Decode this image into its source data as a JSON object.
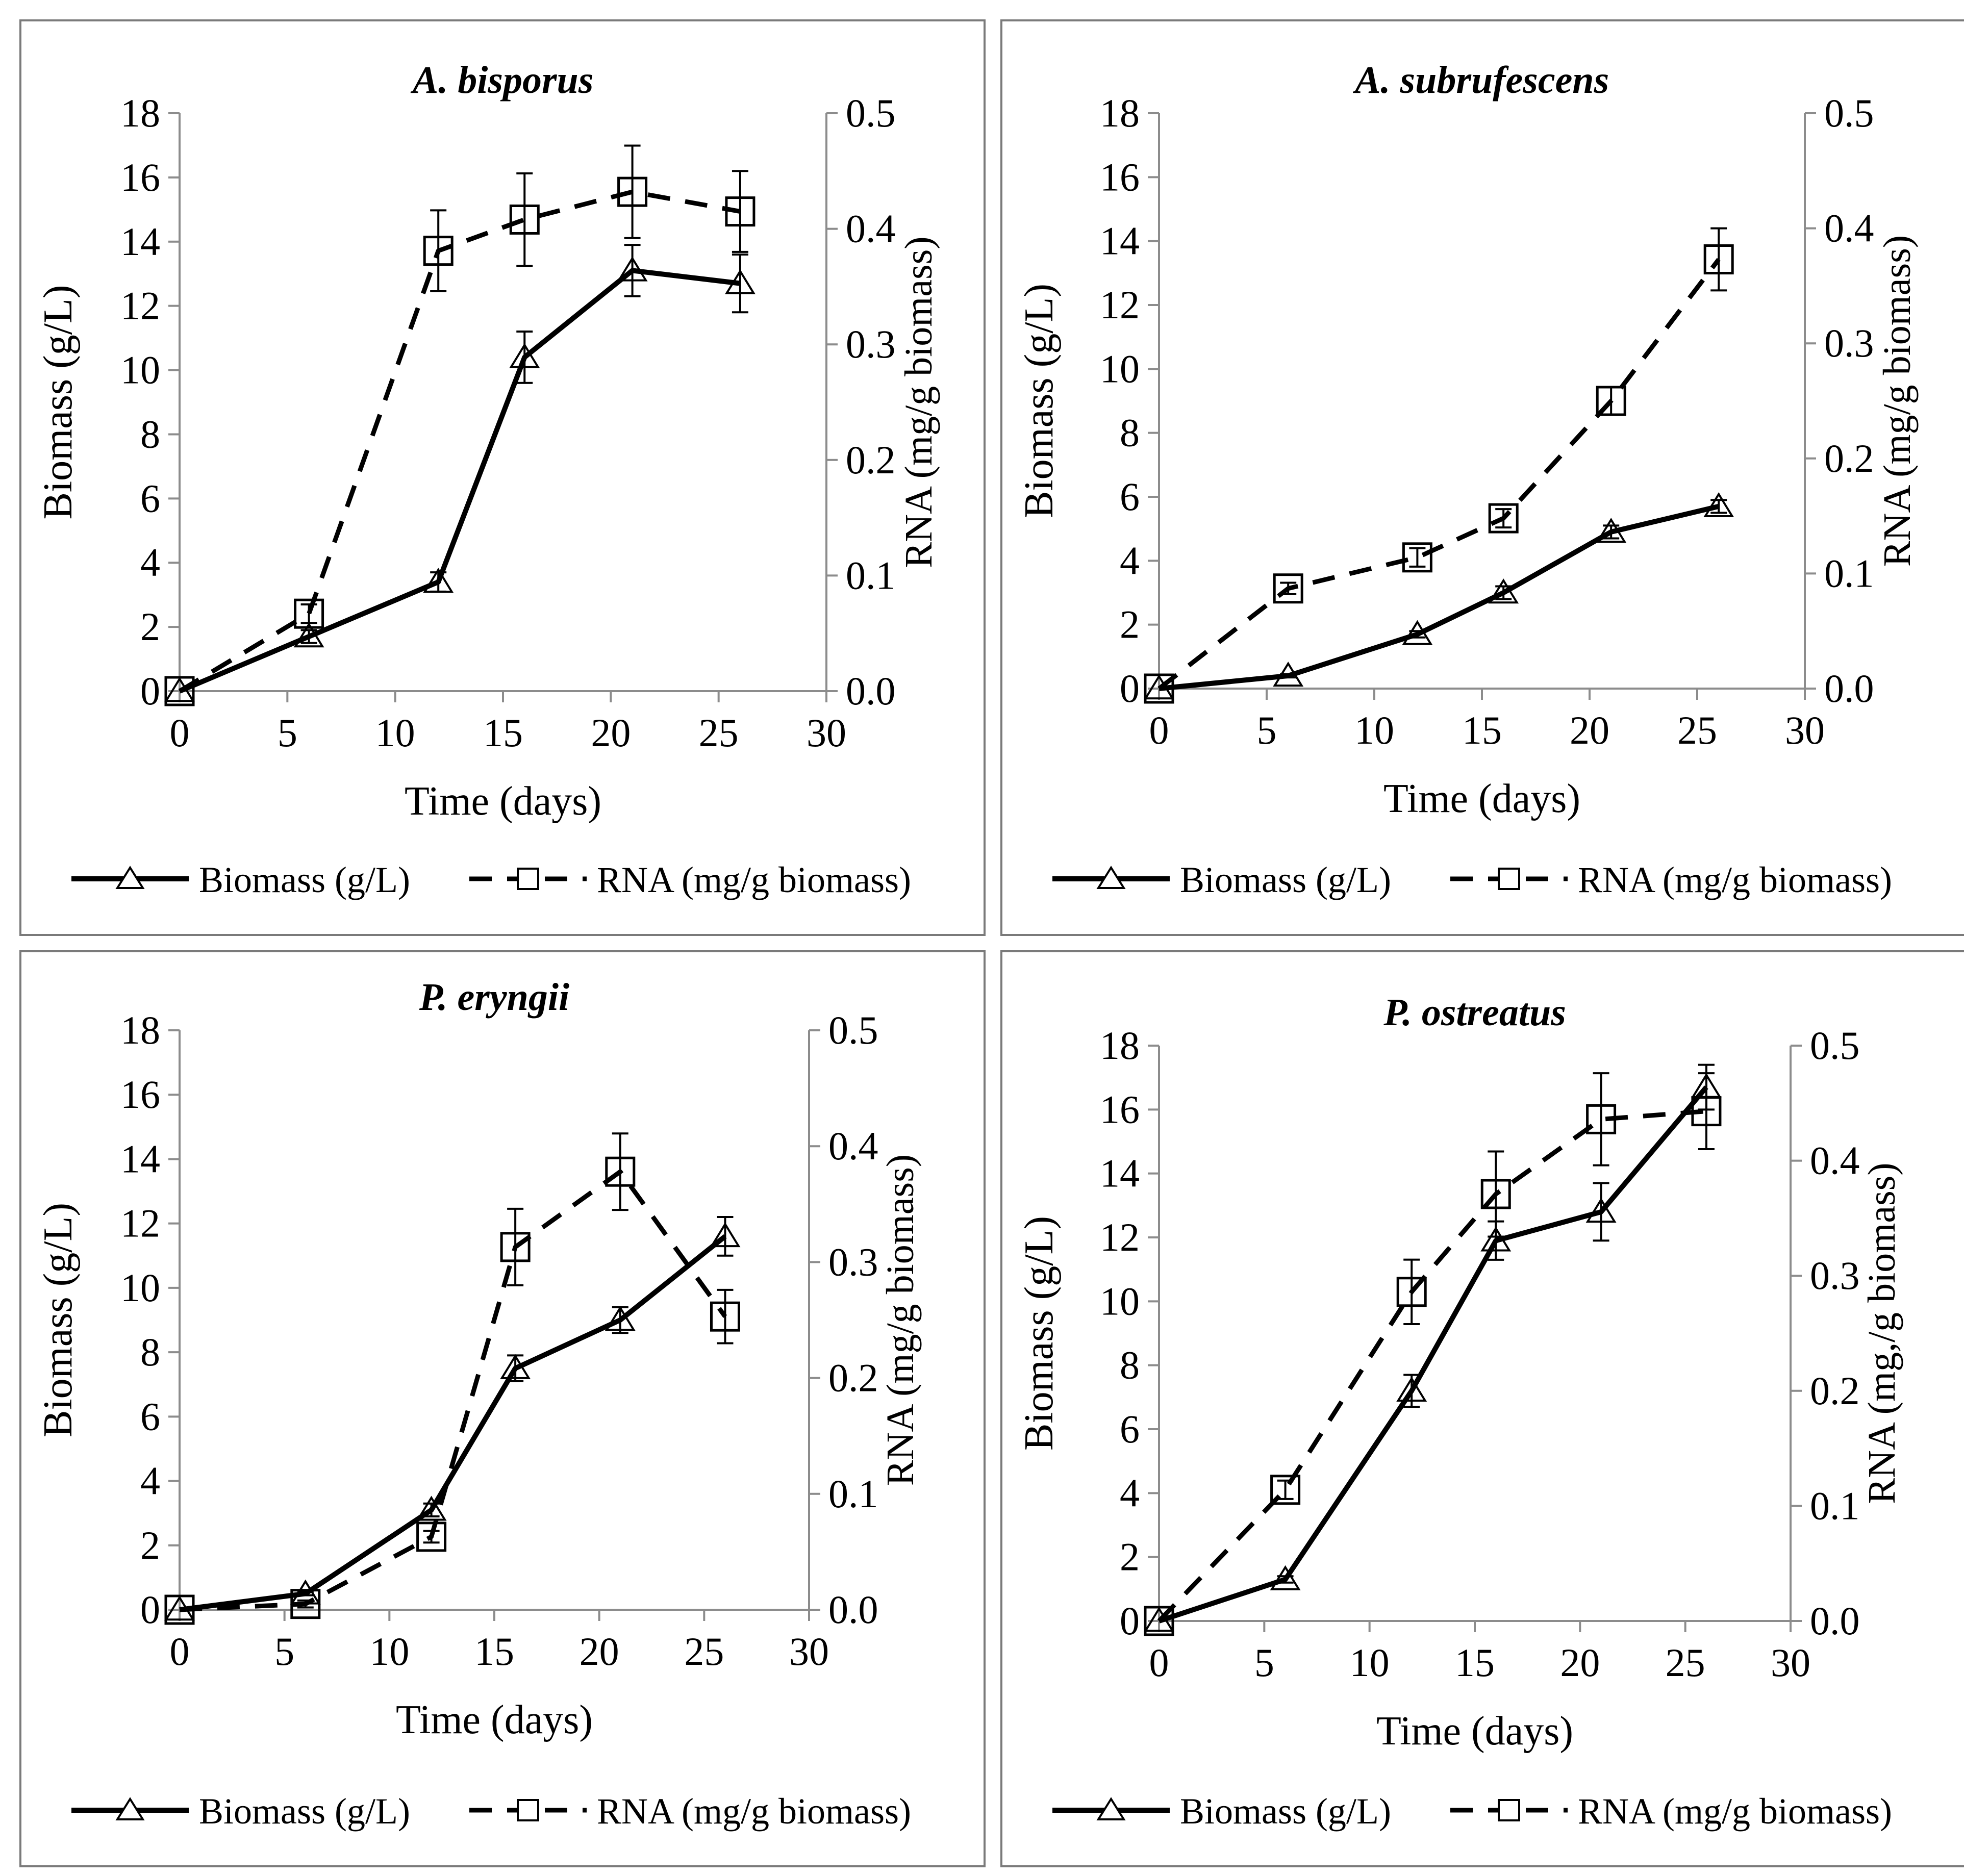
{
  "chart_data": [
    {
      "type": "line",
      "title": "A. bisporus",
      "xlabel": "Time (days)",
      "ylabel": "Biomass (g/L)",
      "y2label": "RNA (mg/g biomass)",
      "xlim": [
        0,
        30
      ],
      "ylim": [
        0,
        18
      ],
      "y2lim": [
        0,
        0.5
      ],
      "x_ticks": [
        "0",
        "5",
        "10",
        "15",
        "20",
        "25",
        "30"
      ],
      "y_ticks": [
        "0",
        "2",
        "4",
        "6",
        "8",
        "10",
        "12",
        "14",
        "16",
        "18"
      ],
      "y2_ticks": [
        "0.0",
        "0.1",
        "0.2",
        "0.3",
        "0.4",
        "0.5"
      ],
      "x": [
        0,
        6,
        12,
        16,
        21,
        26
      ],
      "series": [
        {
          "name": "Biomass (g/L)",
          "axis": "left",
          "marker": "triangle",
          "line": "solid",
          "values": [
            0,
            1.7,
            3.4,
            10.4,
            13.1,
            12.7
          ],
          "errors": [
            0,
            0.2,
            0.3,
            0.8,
            0.8,
            0.9
          ]
        },
        {
          "name": "RNA (mg/g biomass)",
          "axis": "right",
          "marker": "square",
          "line": "dashed",
          "values": [
            0,
            0.067,
            0.381,
            0.408,
            0.432,
            0.415
          ],
          "errors": [
            0,
            0.008,
            0.035,
            0.04,
            0.04,
            0.035
          ]
        }
      ],
      "legend": {
        "position": "bottom",
        "items": [
          "Biomass (g/L)",
          "RNA (mg/g biomass)"
        ]
      }
    },
    {
      "type": "line",
      "title": "A. subrufescens",
      "xlabel": "Time (days)",
      "ylabel": "Biomass (g/L)",
      "y2label": "RNA (mg/g biomass)",
      "xlim": [
        0,
        30
      ],
      "ylim": [
        0,
        18
      ],
      "y2lim": [
        0,
        0.5
      ],
      "x_ticks": [
        "0",
        "5",
        "10",
        "15",
        "20",
        "25",
        "30"
      ],
      "y_ticks": [
        "0",
        "2",
        "4",
        "6",
        "8",
        "10",
        "12",
        "14",
        "16",
        "18"
      ],
      "y2_ticks": [
        "0.0",
        "0.1",
        "0.2",
        "0.3",
        "0.4",
        "0.5"
      ],
      "x": [
        0,
        6,
        12,
        16,
        21,
        26
      ],
      "series": [
        {
          "name": "Biomass (g/L)",
          "axis": "left",
          "marker": "triangle",
          "line": "solid",
          "values": [
            0,
            0.4,
            1.7,
            3.0,
            4.9,
            5.7
          ],
          "errors": [
            0,
            0.05,
            0.1,
            0.2,
            0.2,
            0.2
          ]
        },
        {
          "name": "RNA (mg/g biomass)",
          "axis": "right",
          "marker": "square",
          "line": "dashed",
          "values": [
            0,
            0.087,
            0.114,
            0.148,
            0.25,
            0.373
          ],
          "errors": [
            0,
            0.005,
            0.008,
            0.008,
            0.012,
            0.027
          ]
        }
      ],
      "legend": {
        "position": "bottom",
        "items": [
          "Biomass (g/L)",
          "RNA (mg/g biomass)"
        ]
      }
    },
    {
      "type": "line",
      "title": "P. eryngii",
      "xlabel": "Time (days)",
      "ylabel": "Biomass (g/L)",
      "y2label": "RNA (mg/g biomass)",
      "xlim": [
        0,
        30
      ],
      "ylim": [
        0,
        18
      ],
      "y2lim": [
        0,
        0.5
      ],
      "x_ticks": [
        "0",
        "5",
        "10",
        "15",
        "20",
        "25",
        "30"
      ],
      "y_ticks": [
        "0",
        "2",
        "4",
        "6",
        "8",
        "10",
        "12",
        "14",
        "16",
        "18"
      ],
      "y2_ticks": [
        "0.0",
        "0.1",
        "0.2",
        "0.3",
        "0.4",
        "0.5"
      ],
      "x": [
        0,
        6,
        12,
        16,
        21,
        26
      ],
      "series": [
        {
          "name": "Biomass (g/L)",
          "axis": "left",
          "marker": "triangle",
          "line": "solid",
          "values": [
            0,
            0.5,
            3.1,
            7.5,
            9.0,
            11.6
          ],
          "errors": [
            0,
            0.05,
            0.2,
            0.4,
            0.4,
            0.6
          ]
        },
        {
          "name": "RNA (mg/g biomass)",
          "axis": "right",
          "marker": "square",
          "line": "dashed",
          "values": [
            0,
            0.005,
            0.063,
            0.313,
            0.378,
            0.253
          ],
          "errors": [
            0,
            0.003,
            0.005,
            0.033,
            0.033,
            0.023
          ]
        }
      ],
      "legend": {
        "position": "bottom",
        "items": [
          "Biomass (g/L)",
          "RNA (mg/g biomass)"
        ]
      }
    },
    {
      "type": "line",
      "title": "P. ostreatus",
      "xlabel": "Time (days)",
      "ylabel": "Biomass (g/L)",
      "y2label": "RNA (mg,/g biomass)",
      "xlim": [
        0,
        30
      ],
      "ylim": [
        0,
        18
      ],
      "y2lim": [
        0,
        0.5
      ],
      "x_ticks": [
        "0",
        "5",
        "10",
        "15",
        "20",
        "25",
        "30"
      ],
      "y_ticks": [
        "0",
        "2",
        "4",
        "6",
        "8",
        "10",
        "12",
        "14",
        "16",
        "18"
      ],
      "y2_ticks": [
        "0.0",
        "0.1",
        "0.2",
        "0.3",
        "0.4",
        "0.5"
      ],
      "x": [
        0,
        6,
        12,
        16,
        21,
        26
      ],
      "series": [
        {
          "name": "Biomass (g/L)",
          "axis": "left",
          "marker": "triangle",
          "line": "solid",
          "values": [
            0,
            1.3,
            7.2,
            11.9,
            12.8,
            16.7
          ],
          "errors": [
            0,
            0.1,
            0.5,
            0.6,
            0.9,
            0.7
          ]
        },
        {
          "name": "RNA (mg/g biomass)",
          "axis": "right",
          "marker": "square",
          "line": "dashed",
          "values": [
            0,
            0.114,
            0.286,
            0.371,
            0.436,
            0.443
          ],
          "errors": [
            0,
            0.008,
            0.028,
            0.037,
            0.04,
            0.033
          ]
        }
      ],
      "legend": {
        "position": "bottom",
        "items": [
          "Biomass (g/L)",
          "RNA (mg/g biomass)"
        ]
      }
    }
  ]
}
